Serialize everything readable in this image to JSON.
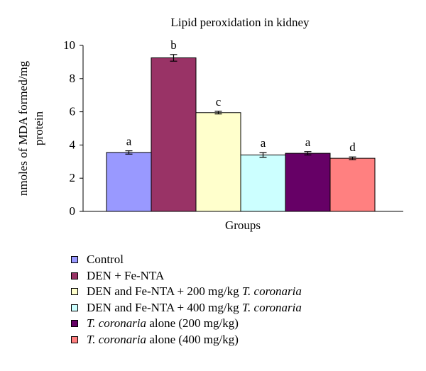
{
  "chart_data": {
    "type": "bar",
    "title": "Lipid peroxidation in kidney",
    "xlabel": "Groups",
    "ylabel_lines": [
      "nmoles of MDA formed/mg",
      "protein"
    ],
    "ylim": [
      0,
      10
    ],
    "yticks": [
      0,
      2,
      4,
      6,
      8,
      10
    ],
    "grid": false,
    "legend_position": "bottom",
    "series": [
      {
        "name": "Control",
        "value": 3.55,
        "error": 0.1,
        "letter": "a",
        "color": "#9999ff"
      },
      {
        "name": "DEN + Fe-NTA",
        "value": 9.25,
        "error": 0.2,
        "letter": "b",
        "color": "#993366"
      },
      {
        "name": "DEN and Fe-NTA + 200 mg/kg T. coronaria",
        "value": 5.95,
        "error": 0.08,
        "letter": "c",
        "color": "#ffffcc"
      },
      {
        "name": "DEN and Fe-NTA + 400 mg/kg T. coronaria",
        "value": 3.4,
        "error": 0.14,
        "letter": "a",
        "color": "#ccffff"
      },
      {
        "name": "T. coronaria alone (200 mg/kg)",
        "value": 3.5,
        "error": 0.1,
        "letter": "a",
        "color": "#660066"
      },
      {
        "name": "T. coronaria alone (400 mg/kg)",
        "value": 3.2,
        "error": 0.08,
        "letter": "d",
        "color": "#ff8080"
      }
    ]
  },
  "legend": {
    "items": [
      {
        "prefix": "Control",
        "italic": "",
        "suffix": ""
      },
      {
        "prefix": "DEN + Fe-NTA",
        "italic": "",
        "suffix": ""
      },
      {
        "prefix": "DEN and Fe-NTA + 200 mg/kg ",
        "italic": "T. coronaria",
        "suffix": ""
      },
      {
        "prefix": "DEN and Fe-NTA + 400 mg/kg ",
        "italic": "T. coronaria",
        "suffix": ""
      },
      {
        "prefix": "",
        "italic": "T. coronaria",
        "suffix": " alone (200 mg/kg)"
      },
      {
        "prefix": "",
        "italic": "T. coronaria",
        "suffix": " alone (400 mg/kg)"
      }
    ]
  }
}
